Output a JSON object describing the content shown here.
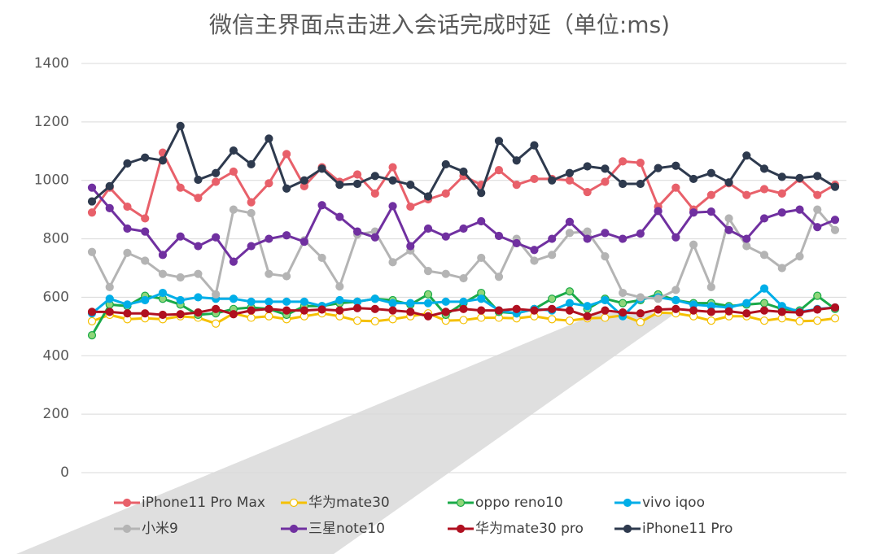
{
  "chart_data": {
    "type": "line",
    "title": "微信主界面点击进入会话完成时延（单位:ms)",
    "ylim": [
      0,
      1400
    ],
    "yticks": [
      0,
      200,
      400,
      600,
      800,
      1000,
      1200,
      1400
    ],
    "grid": true,
    "legend": "bottom",
    "series": [
      {
        "name": "iPhone11 Pro Max",
        "color": "#e8606a",
        "marker_fill": "#e8606a",
        "values": [
          890,
          975,
          910,
          870,
          1095,
          975,
          940,
          995,
          1030,
          925,
          990,
          1090,
          980,
          1045,
          995,
          1020,
          955,
          1045,
          910,
          935,
          955,
          1015,
          985,
          1035,
          985,
          1005,
          1005,
          1000,
          960,
          995,
          1065,
          1060,
          910,
          975,
          900,
          950,
          990,
          950,
          970,
          955,
          1005,
          950,
          985
        ]
      },
      {
        "name": "华为mate30",
        "color": "#f5c000",
        "marker_fill": "#ffffff",
        "values": [
          518,
          540,
          525,
          528,
          525,
          535,
          530,
          510,
          545,
          530,
          535,
          525,
          535,
          545,
          535,
          520,
          518,
          525,
          535,
          545,
          520,
          522,
          530,
          530,
          528,
          535,
          525,
          520,
          528,
          530,
          538,
          515,
          548,
          545,
          535,
          520,
          535,
          535,
          520,
          528,
          518,
          520,
          528
        ]
      },
      {
        "name": "oppo reno10",
        "color": "#1aaa48",
        "marker_fill": "#8fd67a",
        "values": [
          470,
          575,
          570,
          605,
          595,
          575,
          540,
          545,
          560,
          565,
          560,
          540,
          570,
          570,
          580,
          585,
          595,
          590,
          575,
          610,
          540,
          580,
          615,
          550,
          545,
          560,
          595,
          620,
          560,
          595,
          580,
          590,
          610,
          590,
          580,
          580,
          570,
          575,
          580,
          560,
          555,
          605,
          560
        ]
      },
      {
        "name": "vivo iqoo",
        "color": "#00aee8",
        "marker_fill": "#00aee8",
        "values": [
          545,
          595,
          575,
          590,
          615,
          590,
          600,
          595,
          595,
          585,
          585,
          585,
          585,
          570,
          590,
          585,
          595,
          580,
          580,
          580,
          585,
          585,
          595,
          555,
          545,
          560,
          555,
          580,
          570,
          590,
          535,
          595,
          600,
          590,
          575,
          570,
          565,
          580,
          630,
          570,
          550,
          560,
          565
        ]
      },
      {
        "name": "小米9",
        "color": "#b4b4b4",
        "marker_fill": "#b4b4b4",
        "values": [
          755,
          635,
          752,
          725,
          680,
          668,
          680,
          610,
          900,
          888,
          680,
          672,
          795,
          735,
          637,
          815,
          825,
          720,
          760,
          690,
          680,
          665,
          735,
          670,
          800,
          725,
          745,
          820,
          825,
          740,
          615,
          600,
          595,
          625,
          780,
          635,
          870,
          775,
          745,
          700,
          740,
          900,
          830
        ]
      },
      {
        "name": "三星note10",
        "color": "#7030a0",
        "marker_fill": "#7030a0",
        "values": [
          975,
          905,
          835,
          825,
          745,
          808,
          775,
          805,
          722,
          775,
          800,
          812,
          790,
          915,
          875,
          825,
          805,
          912,
          775,
          835,
          808,
          835,
          860,
          810,
          785,
          762,
          800,
          858,
          800,
          820,
          800,
          818,
          895,
          805,
          890,
          893,
          830,
          800,
          870,
          890,
          900,
          840,
          865
        ]
      },
      {
        "name": "华为mate30 pro",
        "color": "#b01020",
        "marker_fill": "#b01020",
        "values": [
          550,
          550,
          545,
          545,
          540,
          542,
          548,
          560,
          542,
          555,
          560,
          555,
          555,
          558,
          555,
          563,
          560,
          555,
          550,
          535,
          550,
          560,
          555,
          555,
          560,
          555,
          560,
          555,
          535,
          555,
          548,
          545,
          558,
          560,
          555,
          550,
          552,
          545,
          555,
          550,
          548,
          558,
          565
        ]
      },
      {
        "name": "iPhone11 Pro",
        "color": "#2e3a4e",
        "marker_fill": "#2e3a4e",
        "values": [
          928,
          980,
          1058,
          1078,
          1068,
          1186,
          1002,
          1025,
          1102,
          1055,
          1143,
          972,
          1000,
          1040,
          985,
          988,
          1015,
          1000,
          985,
          945,
          1055,
          1030,
          957,
          1135,
          1068,
          1120,
          1000,
          1025,
          1048,
          1040,
          988,
          988,
          1042,
          1050,
          1005,
          1025,
          993,
          1085,
          1040,
          1012,
          1008,
          1015,
          978
        ]
      }
    ]
  }
}
